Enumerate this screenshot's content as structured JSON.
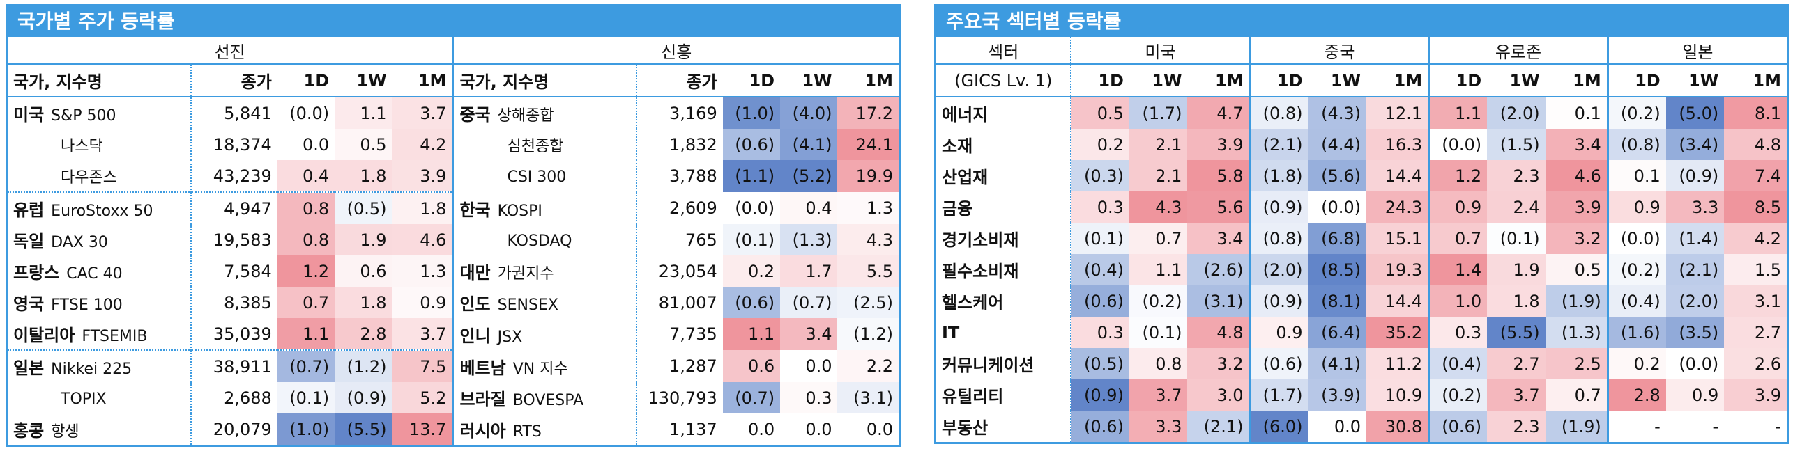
{
  "left_panel": {
    "title": "국가별 주가 등락률",
    "groups": [
      {
        "label": "선진",
        "header": [
          "국가, 지수명",
          "종가",
          "1D",
          "1W",
          "1M"
        ],
        "rows": [
          {
            "country": "미국",
            "index": "S&P 500",
            "close": "5,841",
            "changes": [
              "(0.0)",
              "1.1",
              "3.7"
            ]
          },
          {
            "country": null,
            "index": "나스닥",
            "close": "18,374",
            "changes": [
              "0.0",
              "0.5",
              "4.2"
            ]
          },
          {
            "country": null,
            "index": "다우존스",
            "close": "43,239",
            "changes": [
              "0.4",
              "1.8",
              "3.9"
            ]
          },
          {
            "country": "유럽",
            "index": "EuroStoxx 50",
            "close": "4,947",
            "changes": [
              "0.8",
              "(0.5)",
              "1.8"
            ]
          },
          {
            "country": "독일",
            "index": "DAX 30",
            "close": "19,583",
            "changes": [
              "0.8",
              "1.9",
              "4.6"
            ]
          },
          {
            "country": "프랑스",
            "index": "CAC 40",
            "close": "7,584",
            "changes": [
              "1.2",
              "0.6",
              "1.3"
            ]
          },
          {
            "country": "영국",
            "index": "FTSE 100",
            "close": "8,385",
            "changes": [
              "0.7",
              "1.8",
              "0.9"
            ]
          },
          {
            "country": "이탈리아",
            "index": "FTSEMIB",
            "close": "35,039",
            "changes": [
              "1.1",
              "2.8",
              "3.7"
            ]
          },
          {
            "country": "일본",
            "index": "Nikkei 225",
            "close": "38,911",
            "changes": [
              "(0.7)",
              "(1.2)",
              "7.5"
            ]
          },
          {
            "country": null,
            "index": "TOPIX",
            "close": "2,688",
            "changes": [
              "(0.1)",
              "(0.9)",
              "5.2"
            ]
          },
          {
            "country": "홍콩",
            "index": "항셍",
            "close": "20,079",
            "changes": [
              "(1.0)",
              "(5.5)",
              "13.7"
            ]
          }
        ]
      },
      {
        "label": "신흥",
        "header": [
          "국가, 지수명",
          "종가",
          "1D",
          "1W",
          "1M"
        ],
        "rows": [
          {
            "country": "중국",
            "index": "상해종합",
            "close": "3,169",
            "changes": [
              "(1.0)",
              "(4.0)",
              "17.2"
            ]
          },
          {
            "country": null,
            "index": "심천종합",
            "close": "1,832",
            "changes": [
              "(0.6)",
              "(4.1)",
              "24.1"
            ]
          },
          {
            "country": null,
            "index": "CSI 300",
            "close": "3,788",
            "changes": [
              "(1.1)",
              "(5.2)",
              "19.9"
            ]
          },
          {
            "country": "한국",
            "index": "KOSPI",
            "close": "2,609",
            "changes": [
              "(0.0)",
              "0.4",
              "1.3"
            ]
          },
          {
            "country": null,
            "index": "KOSDAQ",
            "close": "765",
            "changes": [
              "(0.1)",
              "(1.3)",
              "4.3"
            ]
          },
          {
            "country": "대만",
            "index": "가권지수",
            "close": "23,054",
            "changes": [
              "0.2",
              "1.7",
              "5.5"
            ]
          },
          {
            "country": "인도",
            "index": "SENSEX",
            "close": "81,007",
            "changes": [
              "(0.6)",
              "(0.7)",
              "(2.5)"
            ]
          },
          {
            "country": "인니",
            "index": "JSX",
            "close": "7,735",
            "changes": [
              "1.1",
              "3.4",
              "(1.2)"
            ]
          },
          {
            "country": "베트남",
            "index": "VN 지수",
            "close": "1,287",
            "changes": [
              "0.6",
              "0.0",
              "2.2"
            ]
          },
          {
            "country": "브라질",
            "index": "BOVESPA",
            "close": "130,793",
            "changes": [
              "(0.7)",
              "0.3",
              "(3.1)"
            ]
          },
          {
            "country": "러시아",
            "index": "RTS",
            "close": "1,137",
            "changes": [
              "0.0",
              "0.0",
              "0.0"
            ]
          }
        ]
      }
    ]
  },
  "right_panel": {
    "title": "주요국 섹터별 등락률",
    "sector_header": "섹터",
    "sector_subheader": "(GICS Lv. 1)",
    "regions": [
      {
        "name": "미국",
        "periods": [
          "1D",
          "1W",
          "1M"
        ]
      },
      {
        "name": "중국",
        "periods": [
          "1D",
          "1W",
          "1M"
        ]
      },
      {
        "name": "유로존",
        "periods": [
          "1D",
          "1W",
          "1M"
        ]
      },
      {
        "name": "일본",
        "periods": [
          "1D",
          "1W",
          "1M"
        ]
      }
    ],
    "rows": [
      {
        "sector": "에너지",
        "values": [
          [
            "0.5",
            "(1.7)",
            "4.7"
          ],
          [
            "(0.8)",
            "(4.3)",
            "12.1"
          ],
          [
            "1.1",
            "(2.0)",
            "0.1"
          ],
          [
            "(0.2)",
            "(5.0)",
            "8.1"
          ]
        ]
      },
      {
        "sector": "소재",
        "values": [
          [
            "0.2",
            "2.1",
            "3.9"
          ],
          [
            "(2.1)",
            "(4.4)",
            "16.3"
          ],
          [
            "(0.0)",
            "(1.5)",
            "3.4"
          ],
          [
            "(0.8)",
            "(3.4)",
            "4.8"
          ]
        ]
      },
      {
        "sector": "산업재",
        "values": [
          [
            "(0.3)",
            "2.1",
            "5.8"
          ],
          [
            "(1.8)",
            "(5.6)",
            "14.4"
          ],
          [
            "1.2",
            "2.3",
            "4.6"
          ],
          [
            "0.1",
            "(0.9)",
            "7.4"
          ]
        ]
      },
      {
        "sector": "금융",
        "values": [
          [
            "0.3",
            "4.3",
            "5.6"
          ],
          [
            "(0.9)",
            "(0.0)",
            "24.3"
          ],
          [
            "0.9",
            "2.4",
            "3.9"
          ],
          [
            "0.9",
            "3.3",
            "8.5"
          ]
        ]
      },
      {
        "sector": "경기소비재",
        "values": [
          [
            "(0.1)",
            "0.7",
            "3.4"
          ],
          [
            "(0.8)",
            "(6.8)",
            "15.1"
          ],
          [
            "0.7",
            "(0.1)",
            "3.2"
          ],
          [
            "(0.0)",
            "(1.4)",
            "4.2"
          ]
        ]
      },
      {
        "sector": "필수소비재",
        "values": [
          [
            "(0.4)",
            "1.1",
            "(2.6)"
          ],
          [
            "(2.0)",
            "(8.5)",
            "19.3"
          ],
          [
            "1.4",
            "1.9",
            "0.5"
          ],
          [
            "(0.2)",
            "(2.1)",
            "1.5"
          ]
        ]
      },
      {
        "sector": "헬스케어",
        "values": [
          [
            "(0.6)",
            "(0.2)",
            "(3.1)"
          ],
          [
            "(0.9)",
            "(8.1)",
            "14.4"
          ],
          [
            "1.0",
            "1.8",
            "(1.9)"
          ],
          [
            "(0.4)",
            "(2.0)",
            "3.1"
          ]
        ]
      },
      {
        "sector": "IT",
        "values": [
          [
            "0.3",
            "(0.1)",
            "4.8"
          ],
          [
            "0.9",
            "(6.4)",
            "35.2"
          ],
          [
            "0.3",
            "(5.5)",
            "(1.3)"
          ],
          [
            "(1.6)",
            "(3.5)",
            "2.7"
          ]
        ]
      },
      {
        "sector": "커뮤니케이션",
        "values": [
          [
            "(0.5)",
            "0.8",
            "3.2"
          ],
          [
            "(0.6)",
            "(4.1)",
            "11.2"
          ],
          [
            "(0.4)",
            "2.7",
            "2.5"
          ],
          [
            "0.2",
            "(0.0)",
            "2.6"
          ]
        ]
      },
      {
        "sector": "유틸리티",
        "values": [
          [
            "(0.9)",
            "3.7",
            "3.0"
          ],
          [
            "(1.7)",
            "(3.9)",
            "10.9"
          ],
          [
            "(0.2)",
            "3.7",
            "0.7"
          ],
          [
            "2.8",
            "0.9",
            "3.9"
          ]
        ]
      },
      {
        "sector": "부동산",
        "values": [
          [
            "(0.6)",
            "3.3",
            "(2.1)"
          ],
          [
            "(6.0)",
            "0.0",
            "30.8"
          ],
          [
            "(0.6)",
            "2.3",
            "(1.9)"
          ],
          [
            "-",
            "-",
            "-"
          ]
        ]
      }
    ]
  }
}
